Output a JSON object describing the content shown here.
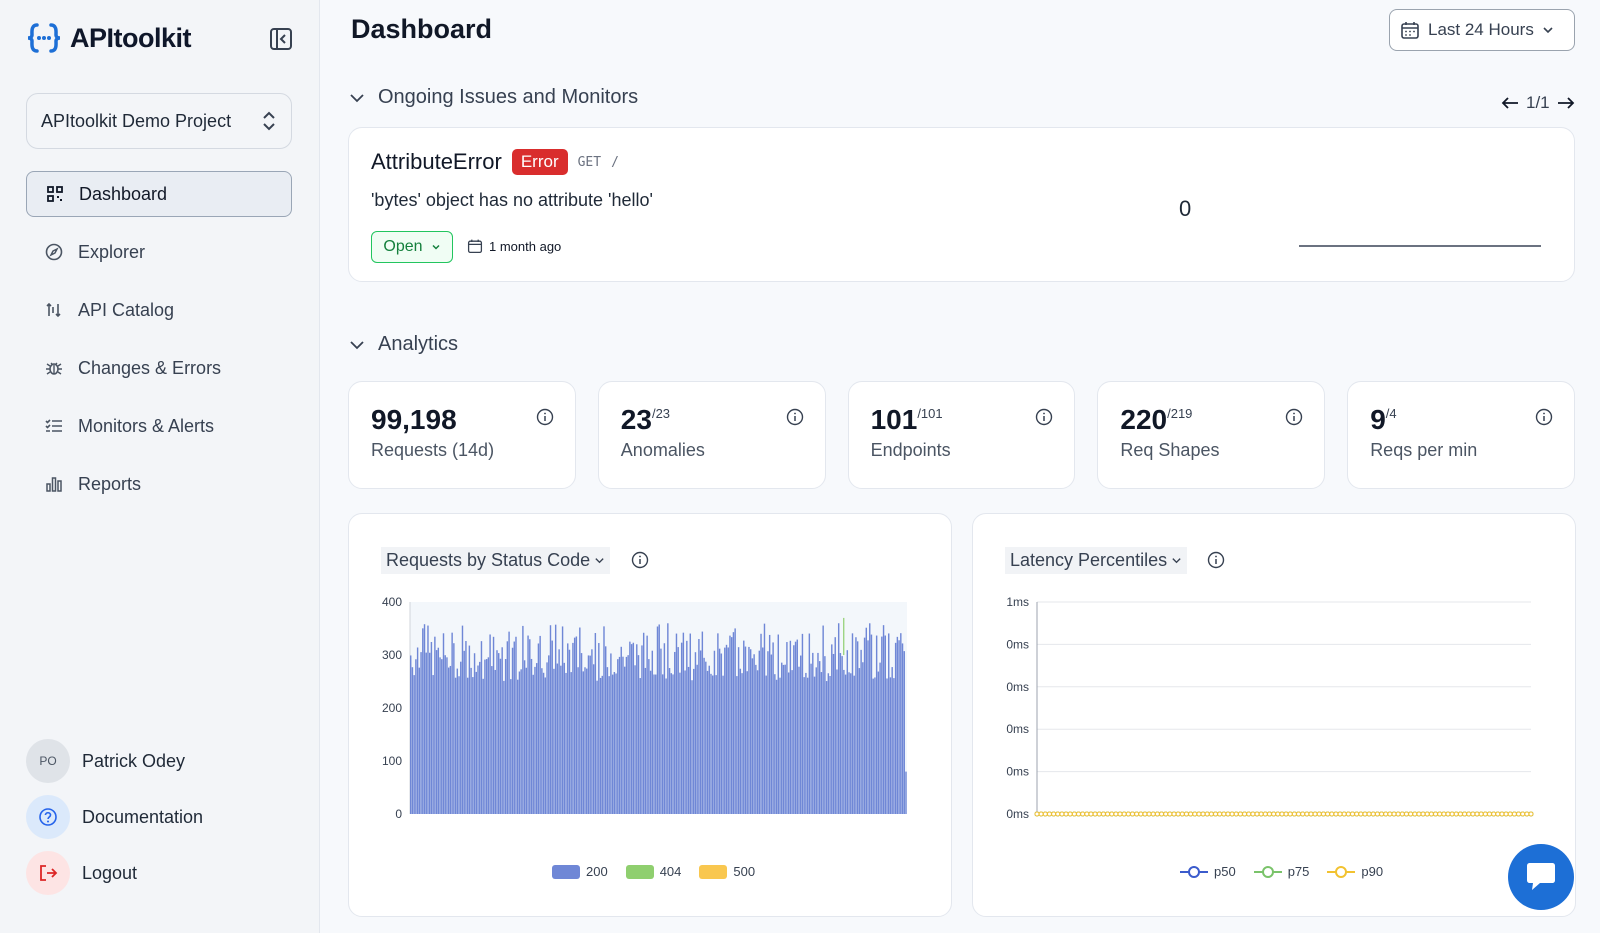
{
  "app": {
    "name": "APItoolkit"
  },
  "sidebar": {
    "project": "APItoolkit Demo Project",
    "items": [
      {
        "label": "Dashboard",
        "icon": "dashboard-icon",
        "active": true
      },
      {
        "label": "Explorer",
        "icon": "compass-icon"
      },
      {
        "label": "API Catalog",
        "icon": "catalog-icon"
      },
      {
        "label": "Changes & Errors",
        "icon": "bug-icon"
      },
      {
        "label": "Monitors & Alerts",
        "icon": "checklist-icon"
      },
      {
        "label": "Reports",
        "icon": "bar-chart-icon"
      }
    ],
    "user": {
      "initials": "PO",
      "name": "Patrick Odey"
    },
    "documentation": "Documentation",
    "logout": "Logout"
  },
  "header": {
    "title": "Dashboard",
    "date_range": "Last 24 Hours"
  },
  "issues": {
    "section_title": "Ongoing Issues and Monitors",
    "pager": "1/1",
    "card": {
      "name": "AttributeError",
      "badge": "Error",
      "method": "GET",
      "path": "/",
      "message": "'bytes' object has no attribute 'hello'",
      "status": "Open",
      "time": "1 month ago",
      "count": "0"
    }
  },
  "analytics": {
    "section_title": "Analytics",
    "stats": [
      {
        "value": "99,198",
        "sup": "",
        "label": "Requests (14d)"
      },
      {
        "value": "23",
        "sup": "/23",
        "label": "Anomalies"
      },
      {
        "value": "101",
        "sup": "/101",
        "label": "Endpoints"
      },
      {
        "value": "220",
        "sup": "/219",
        "label": "Req Shapes"
      },
      {
        "value": "9",
        "sup": "/4",
        "label": "Reqs per min"
      }
    ]
  },
  "colors": {
    "s200": "#6f87d6",
    "s404": "#8fcf6f",
    "s500": "#f9c74f",
    "p50": "#3b5bcc",
    "p75": "#7ac36a",
    "p90": "#f2c230"
  },
  "chart_data": [
    {
      "type": "bar",
      "title": "Requests by Status Code",
      "ylim": [
        0,
        400
      ],
      "yticks": [
        "400",
        "300",
        "200",
        "100",
        "0"
      ],
      "series": [
        {
          "name": "200",
          "pattern": "~300 per bucket, range ~260–360",
          "mean": 300,
          "min": 260,
          "max": 360,
          "buckets": 288
        },
        {
          "name": "404",
          "values_note": "single spike near bucket 250",
          "peak": 370
        },
        {
          "name": "500",
          "values_note": "none visible"
        }
      ],
      "legend": [
        "200",
        "404",
        "500"
      ]
    },
    {
      "type": "line",
      "title": "Latency Percentiles",
      "yticks": [
        "1ms",
        "0ms",
        "0ms",
        "0ms",
        "0ms",
        "0ms"
      ],
      "series": [
        {
          "name": "p50",
          "values": "flat at 0"
        },
        {
          "name": "p75",
          "values": "flat at 0"
        },
        {
          "name": "p90",
          "values": "flat at 0"
        }
      ],
      "legend": [
        "p50",
        "p75",
        "p90"
      ]
    }
  ]
}
